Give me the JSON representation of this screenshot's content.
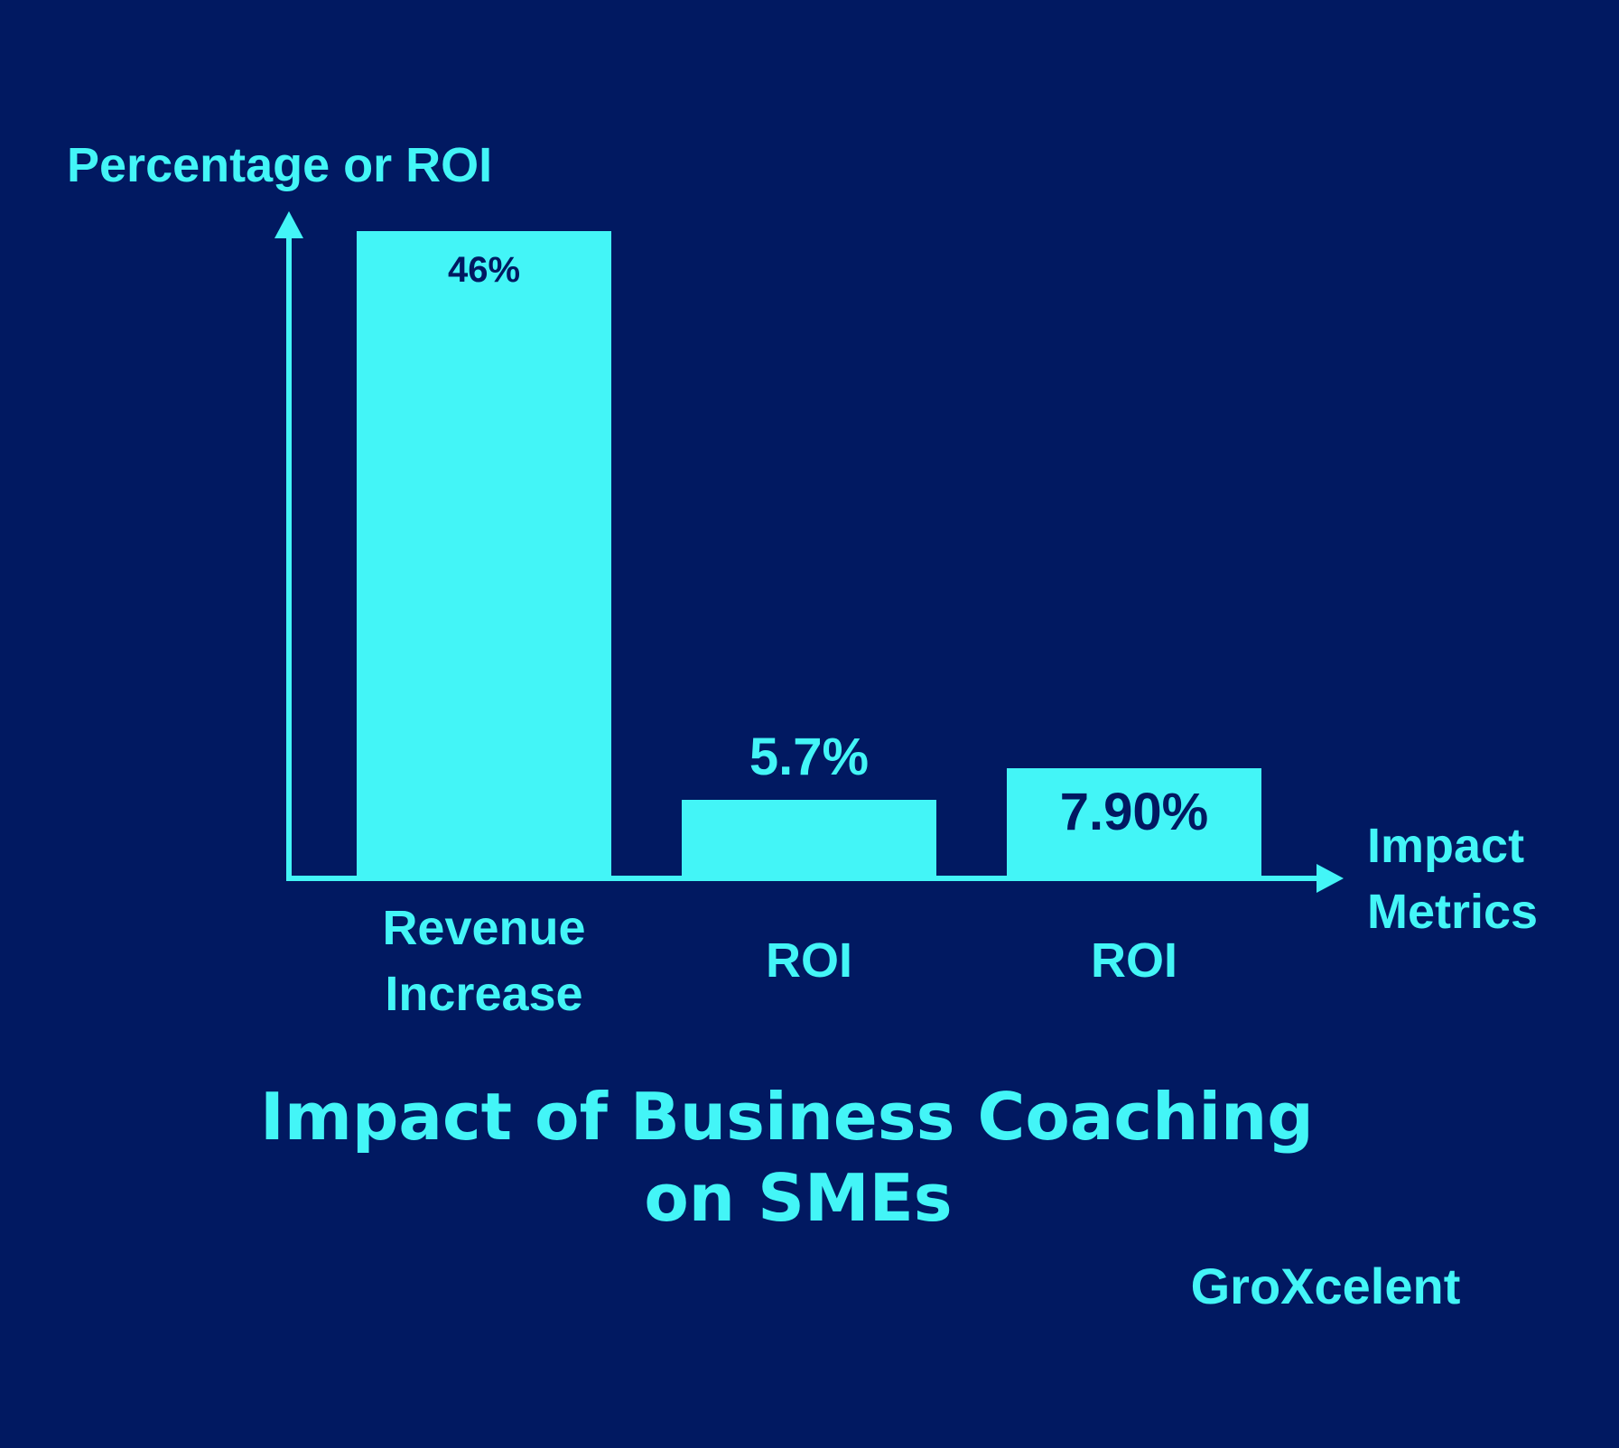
{
  "colors": {
    "background": "#011961",
    "accent": "#43F5F7",
    "bar_label_inside": "#011961"
  },
  "chart_data": {
    "type": "bar",
    "categories": [
      "Revenue Increase",
      "ROI",
      "ROI"
    ],
    "values": [
      46,
      5.7,
      7.9
    ],
    "data_labels": [
      "46%",
      "5.7%",
      "7.90%"
    ],
    "ylabel": "Percentage or ROI",
    "xlabel": "Impact Metrics",
    "title_lines": [
      "Impact of Business Coaching",
      "on SMEs"
    ],
    "ylim": [
      0,
      46
    ],
    "grid": false,
    "legend": "none"
  },
  "brand": "GroXcelent"
}
